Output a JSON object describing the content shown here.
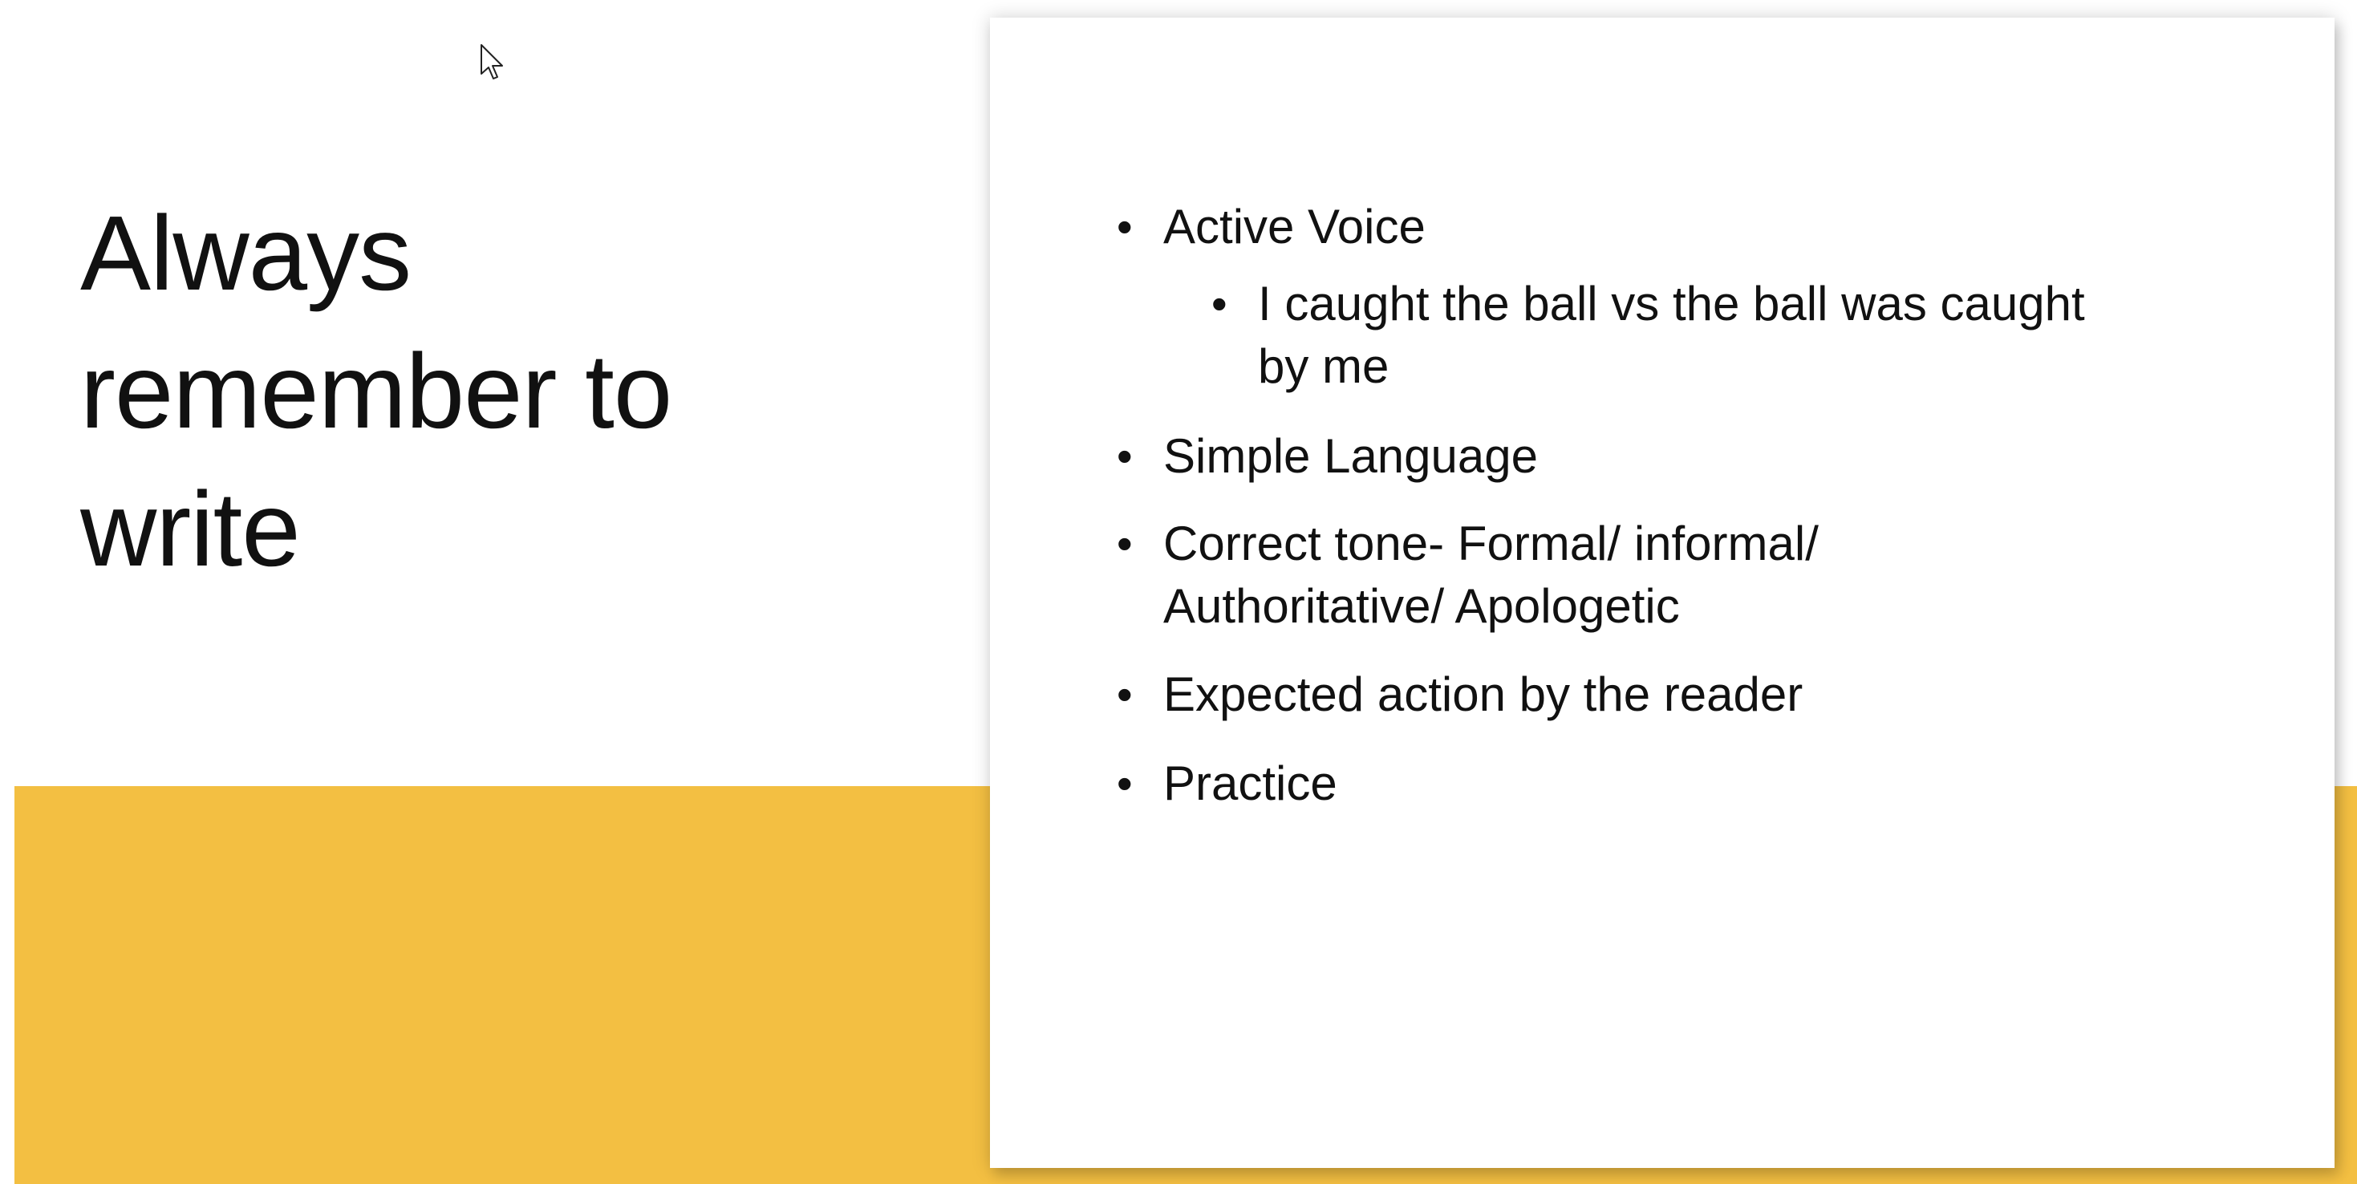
{
  "slide": {
    "title_lines": [
      "Always",
      "remember to",
      "write"
    ],
    "bullets": [
      {
        "text": "Active Voice"
      },
      {
        "lines": [
          "I caught the ball vs the ball was caught",
          "by me"
        ]
      },
      {
        "text": "Simple Language"
      },
      {
        "lines": [
          "Correct tone- Formal/ informal/",
          "Authoritative/ Apologetic"
        ]
      },
      {
        "text": "Expected action by the reader"
      },
      {
        "text": "Practice"
      }
    ],
    "bullet_glyph": "•"
  },
  "colors": {
    "accent": "#F3BF42",
    "text": "#111111",
    "background": "#FFFFFF"
  },
  "icons": {
    "cursor": "mouse-pointer-icon"
  }
}
